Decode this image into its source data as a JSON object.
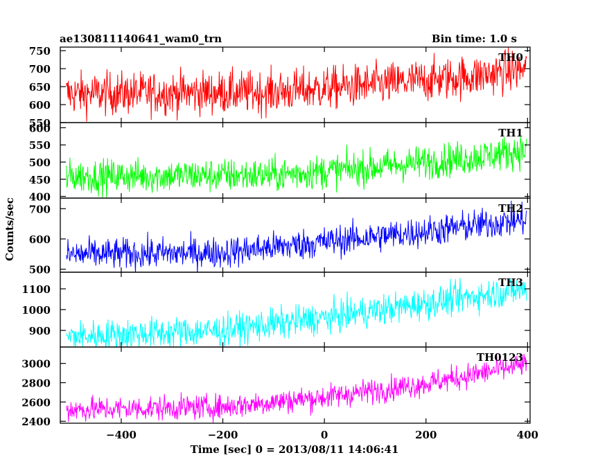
{
  "header": {
    "title": "ae130811140641_wam0_trn",
    "bin_time": "Bin time: 1.0 s"
  },
  "chart_data": {
    "type": "line",
    "xlabel": "Time [sec] 0 = 2013/08/11 14:06:41",
    "ylabel": "Counts/sec",
    "xlim": [
      -520,
      405
    ],
    "x_ticks": [
      -400,
      -200,
      0,
      200,
      400
    ],
    "x_tick_labels": [
      "−400",
      "−200",
      "0",
      "200",
      "400"
    ],
    "x_start": -508,
    "x_end": 398,
    "panels": [
      {
        "name": "TH0",
        "color": "#ff0000",
        "ylim": [
          550,
          760
        ],
        "yticks": [
          550,
          600,
          650,
          700,
          750
        ],
        "trend": [
          [
            -508,
            630
          ],
          [
            -100,
            635
          ],
          [
            100,
            655
          ],
          [
            300,
            680
          ],
          [
            398,
            700
          ]
        ],
        "noise": 30
      },
      {
        "name": "TH1",
        "color": "#00ff00",
        "ylim": [
          395,
          615
        ],
        "yticks": [
          400,
          450,
          500,
          550,
          600
        ],
        "trend": [
          [
            -508,
            458
          ],
          [
            -100,
            462
          ],
          [
            100,
            485
          ],
          [
            300,
            515
          ],
          [
            398,
            535
          ]
        ],
        "noise": 25
      },
      {
        "name": "TH2",
        "color": "#0000ff",
        "ylim": [
          490,
          735
        ],
        "yticks": [
          500,
          600,
          700
        ],
        "trend": [
          [
            -508,
            548
          ],
          [
            -200,
            555
          ],
          [
            0,
            590
          ],
          [
            200,
            625
          ],
          [
            398,
            665
          ]
        ],
        "noise": 26
      },
      {
        "name": "TH3",
        "color": "#00ffff",
        "ylim": [
          820,
          1180
        ],
        "yticks": [
          900,
          1000,
          1100
        ],
        "trend": [
          [
            -508,
            870
          ],
          [
            -200,
            900
          ],
          [
            0,
            960
          ],
          [
            200,
            1030
          ],
          [
            398,
            1100
          ]
        ],
        "noise": 38
      },
      {
        "name": "TH0123",
        "color": "#ff00ff",
        "ylim": [
          2380,
          3170
        ],
        "yticks": [
          2400,
          2600,
          2800,
          3000
        ],
        "trend": [
          [
            -508,
            2520
          ],
          [
            -200,
            2550
          ],
          [
            0,
            2650
          ],
          [
            200,
            2790
          ],
          [
            398,
            2990
          ]
        ],
        "noise": 65
      }
    ]
  }
}
